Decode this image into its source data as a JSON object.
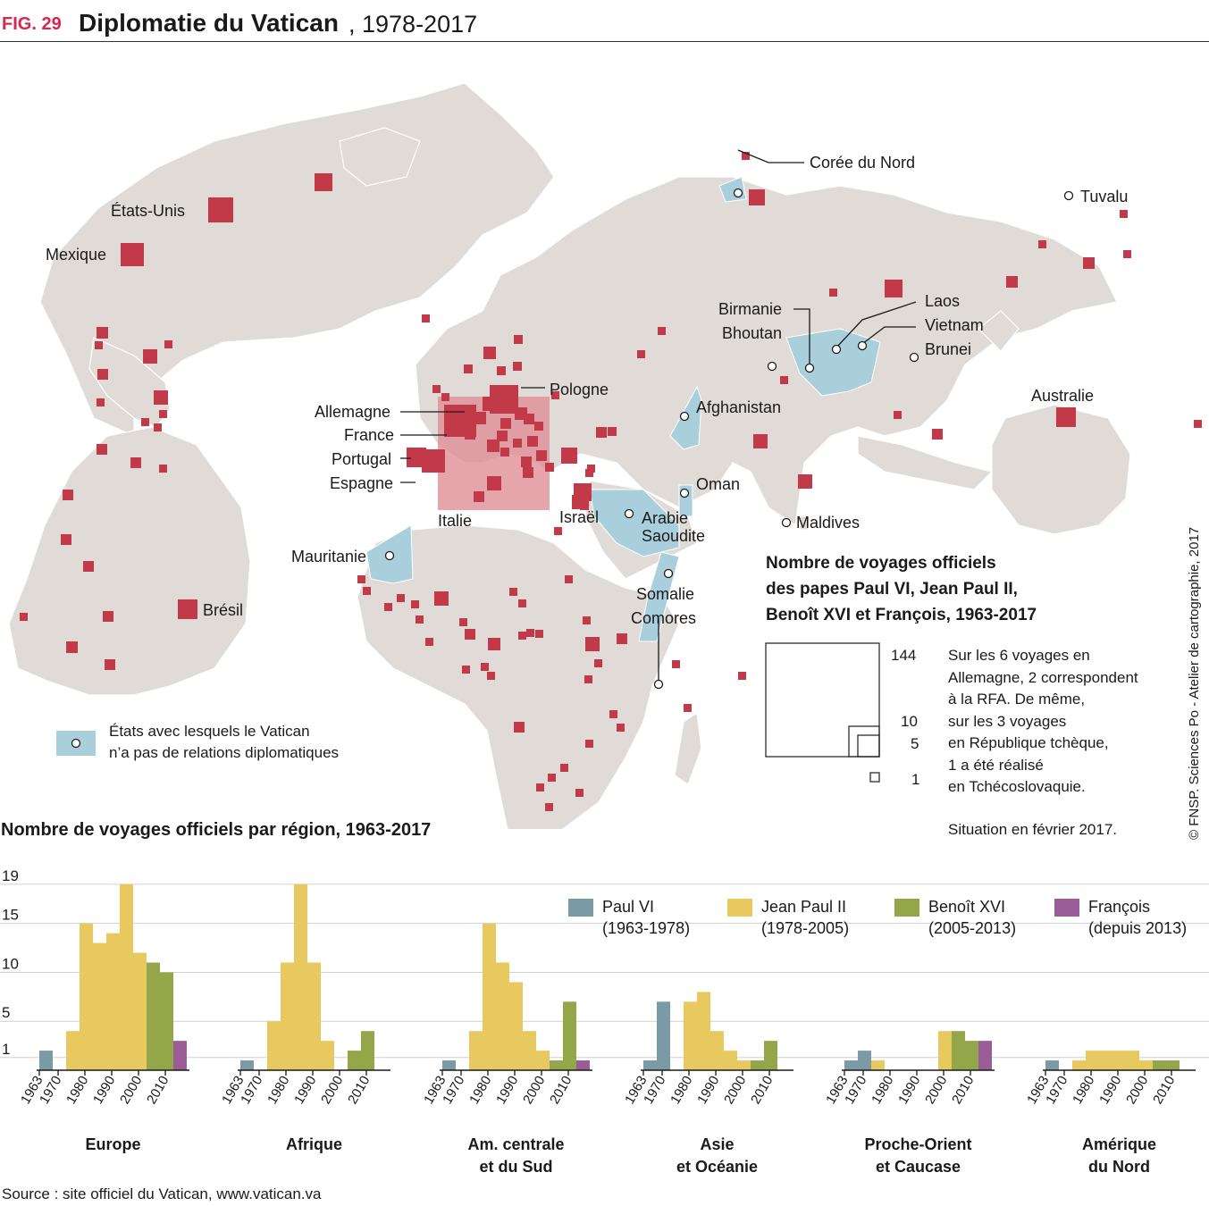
{
  "header": {
    "fig": "FIG. 29",
    "title": "Diplomatie du Vatican",
    "years": ", 1978-2017"
  },
  "colors": {
    "land": "#e0dbd6",
    "no_relations": "#a9cfdc",
    "trips": "#c23a4a",
    "italy_box": "#de8e96",
    "paul_vi": "#7a9aa6",
    "jean_paul_ii": "#e7c95f",
    "benoit_xvi": "#93a74a",
    "francois": "#9a5d98"
  },
  "map": {
    "labels": {
      "etats_unis": "États-Unis",
      "mexique": "Mexique",
      "bresil": "Brésil",
      "allemagne": "Allemagne",
      "france": "France",
      "portugal": "Portugal",
      "espagne": "Espagne",
      "italie": "Italie",
      "pologne": "Pologne",
      "israel": "Israël",
      "afghanistan": "Afghanistan",
      "arabie": "Arabie",
      "saoudite": "Saoudite",
      "oman": "Oman",
      "mauritanie": "Mauritanie",
      "somalie": "Somalie",
      "comores": "Comores",
      "maldives": "Maldives",
      "coree_nord": "Corée du Nord",
      "tuvalu": "Tuvalu",
      "laos": "Laos",
      "vietnam": "Vietnam",
      "birmanie": "Birmanie",
      "bhoutan": "Bhoutan",
      "brunei": "Brunei",
      "australie": "Australie"
    },
    "legend_no_relations": [
      "États avec lesquels le Vatican",
      "n’a pas de relations diplomatiques"
    ]
  },
  "size_legend": {
    "title": [
      "Nombre de voyages officiels",
      "des papes Paul VI, Jean Paul II,",
      "Benoît XVI et François, 1963-2017"
    ],
    "values": [
      "144",
      "10",
      "5",
      "1"
    ],
    "note": [
      "Sur les 6 voyages en",
      "Allemagne, 2 correspondent",
      "à la RFA. De même,",
      "sur les 3 voyages",
      "en République tchèque,",
      "1 a été réalisé",
      "en Tchécoslovaquie."
    ],
    "situation": "Situation en février 2017."
  },
  "credit": "© FNSP. Sciences Po - Atelier de cartographie, 2017",
  "source": "Source : site officiel du Vatican, www.vatican.va",
  "chart_data": {
    "type": "bar",
    "title": "Nombre de voyages officiels par région, 1963-2017",
    "x_ticks": [
      "1963",
      "1970",
      "1980",
      "1990",
      "2000",
      "2010"
    ],
    "y_ticks": [
      1,
      5,
      10,
      15,
      19
    ],
    "ylim": [
      0,
      19
    ],
    "bins": [
      "1963-1967",
      "1968-1972",
      "1973-1977",
      "1978-1982",
      "1983-1987",
      "1988-1992",
      "1993-1997",
      "1998-2002",
      "2003-2007",
      "2008-2012",
      "2013-2017"
    ],
    "series_legend": [
      {
        "name": "Paul VI",
        "period": "(1963-1978)",
        "key": "paul_vi"
      },
      {
        "name": "Jean Paul II",
        "period": "(1978-2005)",
        "key": "jean_paul_ii"
      },
      {
        "name": "Benoît XVI",
        "period": "(2005-2013)",
        "key": "benoit_xvi"
      },
      {
        "name": "François",
        "period": "(depuis 2013)",
        "key": "francois"
      }
    ],
    "panels": [
      {
        "name": "Europe",
        "name2": "",
        "bars": [
          [
            1,
            "paul_vi",
            2
          ],
          [
            3,
            "jean_paul_ii",
            4
          ],
          [
            4,
            "jean_paul_ii",
            15
          ],
          [
            5,
            "jean_paul_ii",
            13
          ],
          [
            6,
            "jean_paul_ii",
            14
          ],
          [
            7,
            "jean_paul_ii",
            19
          ],
          [
            8,
            "jean_paul_ii",
            12
          ],
          [
            9,
            "benoit_xvi",
            11
          ],
          [
            10,
            "benoit_xvi",
            10
          ],
          [
            11,
            "francois",
            3
          ]
        ]
      },
      {
        "name": "Afrique",
        "name2": "",
        "bars": [
          [
            1,
            "paul_vi",
            1
          ],
          [
            3,
            "jean_paul_ii",
            5
          ],
          [
            4,
            "jean_paul_ii",
            11
          ],
          [
            5,
            "jean_paul_ii",
            19
          ],
          [
            6,
            "jean_paul_ii",
            11
          ],
          [
            7,
            "jean_paul_ii",
            3
          ],
          [
            9,
            "benoit_xvi",
            2
          ],
          [
            10,
            "benoit_xvi",
            4
          ]
        ]
      },
      {
        "name": "Am. centrale",
        "name2": "et du Sud",
        "bars": [
          [
            1,
            "paul_vi",
            1
          ],
          [
            3,
            "jean_paul_ii",
            4
          ],
          [
            4,
            "jean_paul_ii",
            15
          ],
          [
            5,
            "jean_paul_ii",
            11
          ],
          [
            6,
            "jean_paul_ii",
            9
          ],
          [
            7,
            "jean_paul_ii",
            4
          ],
          [
            8,
            "jean_paul_ii",
            2
          ],
          [
            9,
            "benoit_xvi",
            1
          ],
          [
            10,
            "benoit_xvi",
            7
          ],
          [
            11,
            "francois",
            1
          ]
        ]
      },
      {
        "name": "Asie",
        "name2": "et Océanie",
        "bars": [
          [
            1,
            "paul_vi",
            1
          ],
          [
            2,
            "paul_vi",
            7
          ],
          [
            4,
            "jean_paul_ii",
            7
          ],
          [
            5,
            "jean_paul_ii",
            8
          ],
          [
            6,
            "jean_paul_ii",
            4
          ],
          [
            7,
            "jean_paul_ii",
            2
          ],
          [
            8,
            "jean_paul_ii",
            1
          ],
          [
            9,
            "benoit_xvi",
            1
          ],
          [
            10,
            "benoit_xvi",
            3
          ]
        ]
      },
      {
        "name": "Proche-Orient",
        "name2": "et Caucase",
        "bars": [
          [
            1,
            "paul_vi",
            1
          ],
          [
            2,
            "paul_vi",
            2
          ],
          [
            3,
            "jean_paul_ii",
            1
          ],
          [
            8,
            "jean_paul_ii",
            4
          ],
          [
            9,
            "benoit_xvi",
            4
          ],
          [
            10,
            "benoit_xvi",
            3
          ],
          [
            11,
            "francois",
            3
          ]
        ]
      },
      {
        "name": "Amérique",
        "name2": "du Nord",
        "bars": [
          [
            1,
            "paul_vi",
            1
          ],
          [
            3,
            "jean_paul_ii",
            1
          ],
          [
            4,
            "jean_paul_ii",
            2
          ],
          [
            5,
            "jean_paul_ii",
            2
          ],
          [
            6,
            "jean_paul_ii",
            2
          ],
          [
            7,
            "jean_paul_ii",
            2
          ],
          [
            8,
            "jean_paul_ii",
            1
          ],
          [
            9,
            "benoit_xvi",
            1
          ],
          [
            10,
            "benoit_xvi",
            1
          ]
        ]
      }
    ]
  }
}
